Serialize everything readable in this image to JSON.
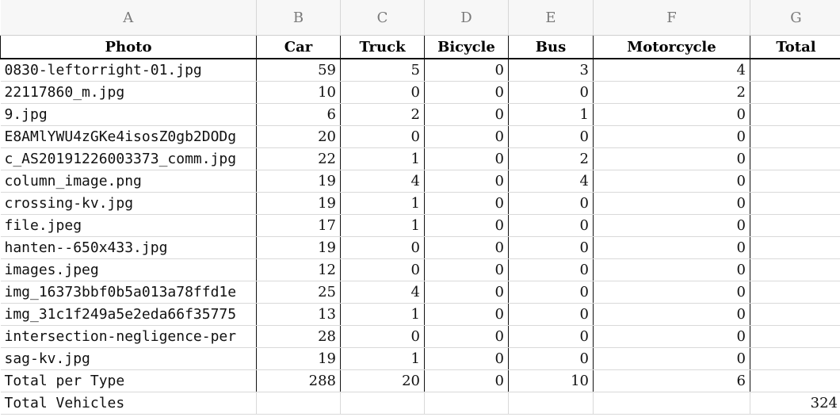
{
  "column_letters": [
    "A",
    "B",
    "C",
    "D",
    "E",
    "F",
    "G"
  ],
  "headers": [
    "Photo",
    "Car",
    "Truck",
    "Bicycle",
    "Bus",
    "Motorcycle",
    "Total"
  ],
  "rows": [
    [
      "0830-leftorright-01.jpg",
      "59",
      "5",
      "0",
      "3",
      "4",
      ""
    ],
    [
      "22117860_m.jpg",
      "10",
      "0",
      "0",
      "0",
      "2",
      ""
    ],
    [
      "9.jpg",
      "6",
      "2",
      "0",
      "1",
      "0",
      ""
    ],
    [
      "E8AMlYWU4zGKe4isosZ0gb2DODg",
      "20",
      "0",
      "0",
      "0",
      "0",
      ""
    ],
    [
      "c_AS20191226003373_comm.jpg",
      "22",
      "1",
      "0",
      "2",
      "0",
      ""
    ],
    [
      "column_image.png",
      "19",
      "4",
      "0",
      "4",
      "0",
      ""
    ],
    [
      "crossing-kv.jpg",
      "19",
      "1",
      "0",
      "0",
      "0",
      ""
    ],
    [
      "file.jpeg",
      "17",
      "1",
      "0",
      "0",
      "0",
      ""
    ],
    [
      "hanten--650x433.jpg",
      "19",
      "0",
      "0",
      "0",
      "0",
      ""
    ],
    [
      "images.jpeg",
      "12",
      "0",
      "0",
      "0",
      "0",
      ""
    ],
    [
      "img_16373bbf0b5a013a78ffd1e",
      "25",
      "4",
      "0",
      "0",
      "0",
      ""
    ],
    [
      "img_31c1f249a5e2eda66f35775",
      "13",
      "1",
      "0",
      "0",
      "0",
      ""
    ],
    [
      "intersection-negligence-per",
      "28",
      "0",
      "0",
      "0",
      "0",
      ""
    ],
    [
      "sag-kv.jpg",
      "19",
      "1",
      "0",
      "0",
      "0",
      ""
    ],
    [
      "Total per Type",
      "288",
      "20",
      "0",
      "10",
      "6",
      ""
    ],
    [
      "Total Vehicles",
      "",
      "",
      "",
      "",
      "",
      "324"
    ]
  ]
}
